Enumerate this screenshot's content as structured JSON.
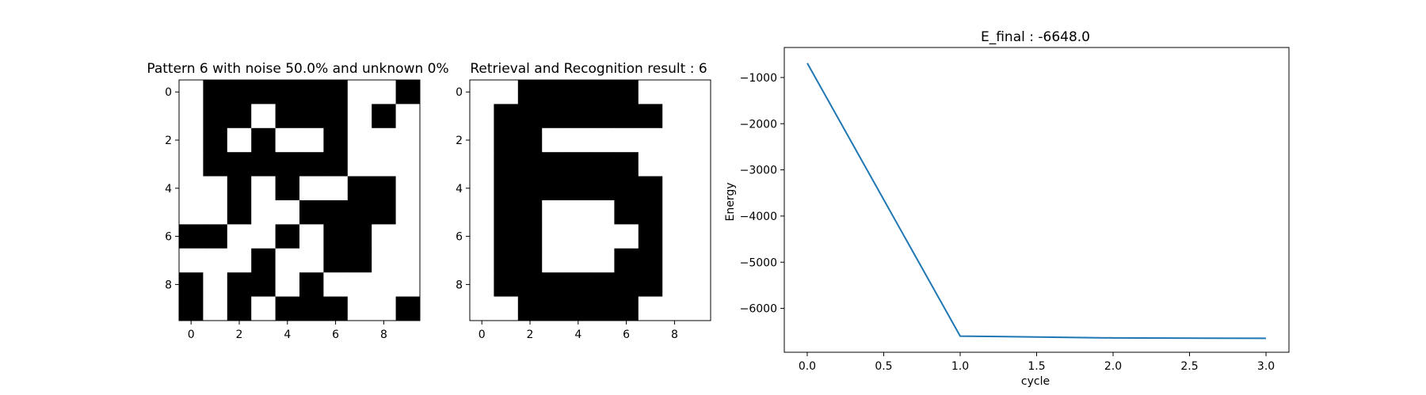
{
  "chart_data": [
    {
      "type": "heatmap",
      "title": "Pattern 6 with noise 50.0% and unknown 0%",
      "colormap": {
        "0": "#ffffff",
        "1": "#000000"
      },
      "x_ticks": [
        0,
        2,
        4,
        6,
        8
      ],
      "y_ticks": [
        0,
        2,
        4,
        6,
        8
      ],
      "grid": [
        [
          0,
          1,
          1,
          1,
          1,
          1,
          1,
          0,
          0,
          1
        ],
        [
          0,
          1,
          1,
          0,
          1,
          1,
          1,
          0,
          1,
          0
        ],
        [
          0,
          1,
          0,
          1,
          0,
          0,
          1,
          0,
          0,
          0
        ],
        [
          0,
          1,
          1,
          1,
          1,
          1,
          1,
          0,
          0,
          0
        ],
        [
          0,
          0,
          1,
          0,
          1,
          0,
          0,
          1,
          1,
          0
        ],
        [
          0,
          0,
          1,
          0,
          0,
          1,
          1,
          1,
          1,
          0
        ],
        [
          1,
          1,
          0,
          0,
          1,
          0,
          1,
          1,
          0,
          0
        ],
        [
          0,
          0,
          0,
          1,
          0,
          0,
          1,
          1,
          0,
          0
        ],
        [
          1,
          0,
          1,
          1,
          0,
          1,
          0,
          0,
          0,
          0
        ],
        [
          1,
          0,
          1,
          0,
          1,
          1,
          1,
          0,
          0,
          1
        ]
      ]
    },
    {
      "type": "heatmap",
      "title": "Retrieval and Recognition result : 6",
      "colormap": {
        "0": "#ffffff",
        "1": "#000000"
      },
      "x_ticks": [
        0,
        2,
        4,
        6,
        8
      ],
      "y_ticks": [
        0,
        2,
        4,
        6,
        8
      ],
      "grid": [
        [
          0,
          0,
          1,
          1,
          1,
          1,
          1,
          0,
          0,
          0
        ],
        [
          0,
          1,
          1,
          1,
          1,
          1,
          1,
          1,
          0,
          0
        ],
        [
          0,
          1,
          1,
          0,
          0,
          0,
          0,
          0,
          0,
          0
        ],
        [
          0,
          1,
          1,
          1,
          1,
          1,
          1,
          0,
          0,
          0
        ],
        [
          0,
          1,
          1,
          1,
          1,
          1,
          1,
          1,
          0,
          0
        ],
        [
          0,
          1,
          1,
          0,
          0,
          0,
          1,
          1,
          0,
          0
        ],
        [
          0,
          1,
          1,
          0,
          0,
          0,
          0,
          1,
          0,
          0
        ],
        [
          0,
          1,
          1,
          0,
          0,
          0,
          1,
          1,
          0,
          0
        ],
        [
          0,
          1,
          1,
          1,
          1,
          1,
          1,
          1,
          0,
          0
        ],
        [
          0,
          0,
          1,
          1,
          1,
          1,
          1,
          0,
          0,
          0
        ]
      ]
    },
    {
      "type": "line",
      "title": "E_final : -6648.0",
      "xlabel": "cycle",
      "ylabel": "Energy",
      "x": [
        0.0,
        1.0,
        2.0,
        3.0
      ],
      "series": [
        {
          "values": [
            -690,
            -6600,
            -6640,
            -6648
          ],
          "color": "#1f77b4"
        }
      ],
      "xlim": [
        -0.15,
        3.15
      ],
      "ylim": [
        -6950,
        -350
      ],
      "x_ticks": [
        0.0,
        0.5,
        1.0,
        1.5,
        2.0,
        2.5,
        3.0
      ],
      "x_tick_labels": [
        "0.0",
        "0.5",
        "1.0",
        "1.5",
        "2.0",
        "2.5",
        "3.0"
      ],
      "y_ticks": [
        -1000,
        -2000,
        -3000,
        -4000,
        -5000,
        -6000
      ],
      "y_tick_labels": [
        "−1000",
        "−2000",
        "−3000",
        "−4000",
        "−5000",
        "−6000"
      ],
      "grid": false
    }
  ]
}
